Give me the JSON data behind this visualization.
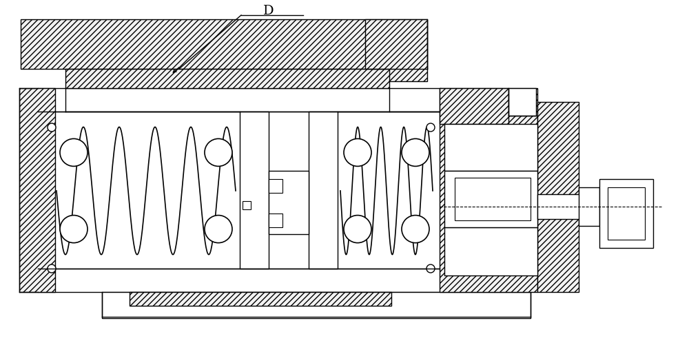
{
  "bg_color": "#ffffff",
  "line_color": "#000000",
  "lw": 1.0,
  "fig_width": 10.0,
  "fig_height": 5.14,
  "label_D": "D",
  "label_fontsize": 14
}
